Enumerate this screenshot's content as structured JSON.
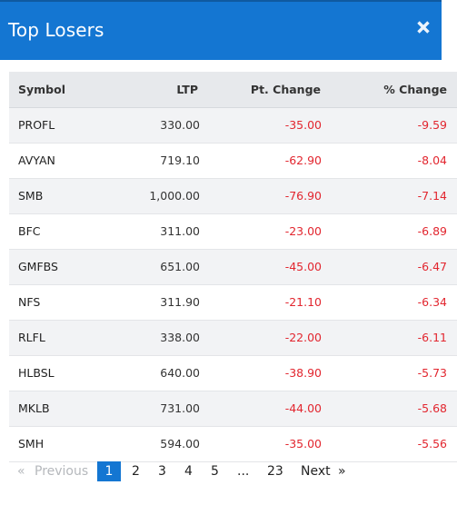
{
  "modal": {
    "title": "Top Losers",
    "close_icon": "close-icon"
  },
  "colors": {
    "header_bg": "#1476d2",
    "negative": "#e2262f",
    "table_header_bg": "#e7e9ec",
    "active_page_bg": "#1476d2"
  },
  "table": {
    "headers": {
      "symbol": "Symbol",
      "ltp": "LTP",
      "pt_change": "Pt. Change",
      "pct_change": "% Change"
    },
    "rows": [
      {
        "symbol": "PROFL",
        "ltp": "330.00",
        "pt_change": "-35.00",
        "pct_change": "-9.59"
      },
      {
        "symbol": "AVYAN",
        "ltp": "719.10",
        "pt_change": "-62.90",
        "pct_change": "-8.04"
      },
      {
        "symbol": "SMB",
        "ltp": "1,000.00",
        "pt_change": "-76.90",
        "pct_change": "-7.14"
      },
      {
        "symbol": "BFC",
        "ltp": "311.00",
        "pt_change": "-23.00",
        "pct_change": "-6.89"
      },
      {
        "symbol": "GMFBS",
        "ltp": "651.00",
        "pt_change": "-45.00",
        "pct_change": "-6.47"
      },
      {
        "symbol": "NFS",
        "ltp": "311.90",
        "pt_change": "-21.10",
        "pct_change": "-6.34"
      },
      {
        "symbol": "RLFL",
        "ltp": "338.00",
        "pt_change": "-22.00",
        "pct_change": "-6.11"
      },
      {
        "symbol": "HLBSL",
        "ltp": "640.00",
        "pt_change": "-38.90",
        "pct_change": "-5.73"
      },
      {
        "symbol": "MKLB",
        "ltp": "731.00",
        "pt_change": "-44.00",
        "pct_change": "-5.68"
      },
      {
        "symbol": "SMH",
        "ltp": "594.00",
        "pt_change": "-35.00",
        "pct_change": "-5.56"
      }
    ]
  },
  "pagination": {
    "prev_arrow": "«",
    "prev_label": "Previous",
    "pages": [
      "1",
      "2",
      "3",
      "4",
      "5"
    ],
    "ellipsis": "...",
    "last_page": "23",
    "next_label": "Next",
    "next_arrow": "»",
    "current_page": "1"
  }
}
